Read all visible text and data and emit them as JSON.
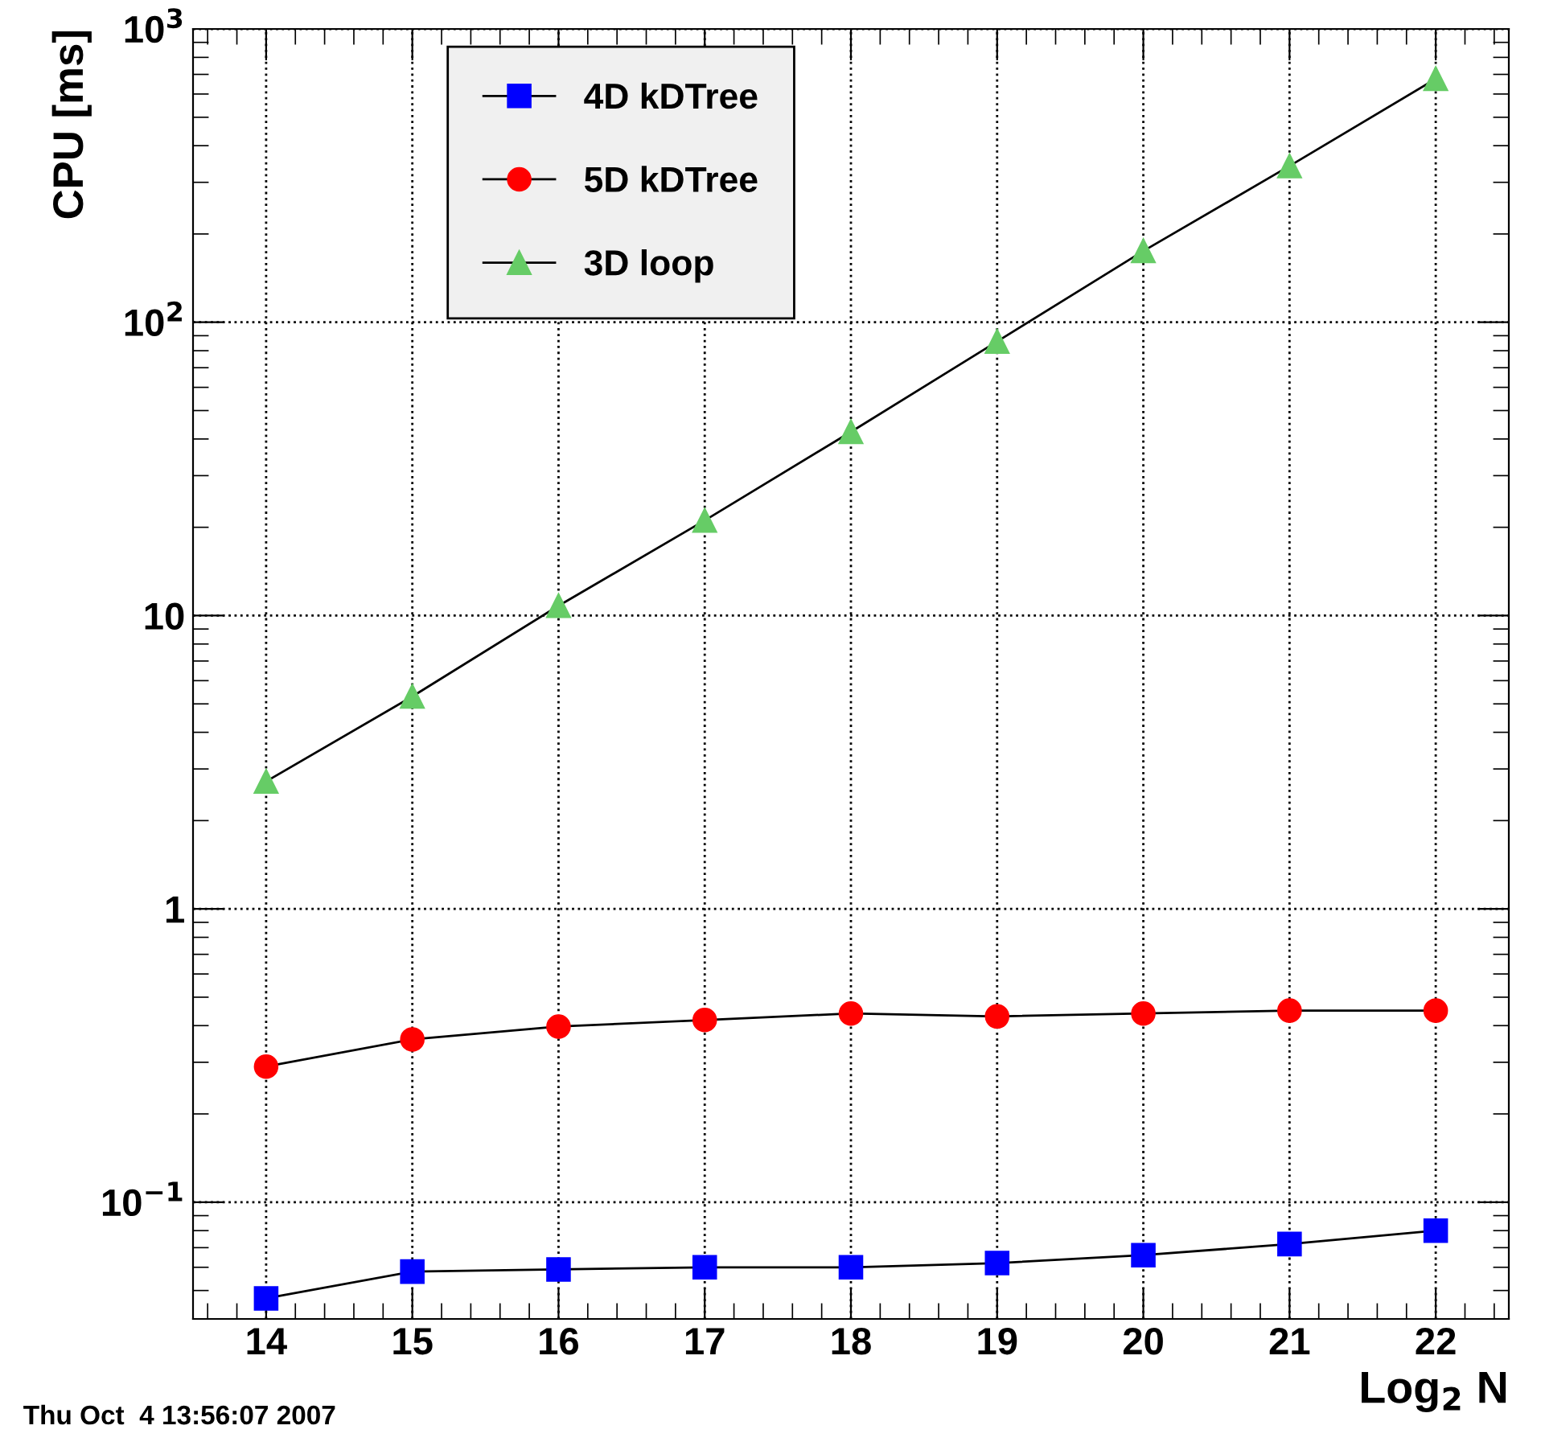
{
  "chart_data": {
    "type": "line",
    "xlabel": "Log$_{2}$ N",
    "ylabel": "CPU [ms]",
    "x": [
      14,
      15,
      16,
      17,
      18,
      19,
      20,
      21,
      22
    ],
    "series": [
      {
        "name": "4D kDTree",
        "color": "#0000ff",
        "marker": "square",
        "values": [
          0.047,
          0.058,
          0.059,
          0.06,
          0.06,
          0.062,
          0.066,
          0.072,
          0.08
        ]
      },
      {
        "name": "5D kDTree",
        "color": "#ff0000",
        "marker": "circle",
        "values": [
          0.29,
          0.359,
          0.397,
          0.418,
          0.44,
          0.43,
          0.44,
          0.45,
          0.45
        ]
      },
      {
        "name": "3D loop",
        "color": "#66cc66",
        "marker": "triangle",
        "values": [
          2.72,
          5.3,
          10.8,
          21.1,
          42.3,
          86,
          175,
          341,
          676
        ]
      }
    ],
    "log": "y",
    "xlim": [
      13.5,
      22.5
    ],
    "xticks": [
      14,
      15,
      16,
      17,
      18,
      19,
      20,
      21,
      22
    ],
    "ylim": [
      0.04,
      1000
    ],
    "yticks": [
      {
        "value": 0.1,
        "label": "10$^{−1}$"
      },
      1,
      10,
      {
        "value": 100,
        "label": "10$^{2}$"
      },
      {
        "value": 1000,
        "label": "10$^{3}$"
      }
    ],
    "grid": true,
    "legend": "top left",
    "line_style": "solid",
    "annotations": [
      "Thu Oct  4 13:56:07 2007"
    ]
  }
}
